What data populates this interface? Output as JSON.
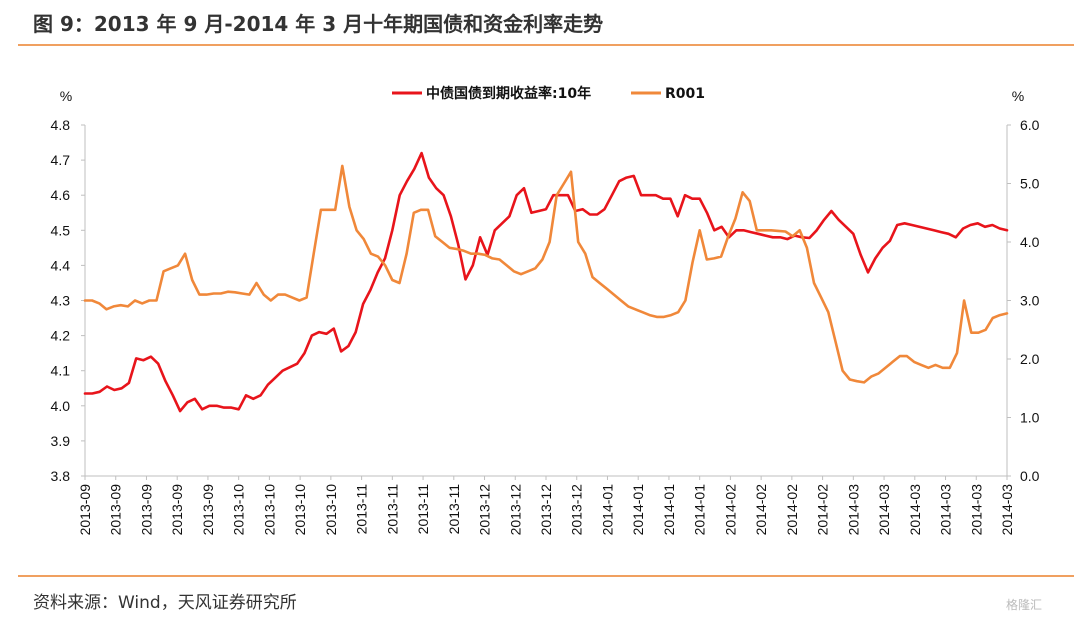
{
  "title": "图 9：2013 年 9 月-2014 年 3 月十年期国债和资金利率走势",
  "source": "资料来源：Wind，天风证券研究所",
  "watermark": "格隆汇",
  "colors": {
    "accent_rule": "#f0a060",
    "bond_line": "#e8141b",
    "r001_line": "#f0883a"
  },
  "chart_data": {
    "type": "line",
    "left_axis": {
      "unit": "%",
      "ylim": [
        3.8,
        4.8
      ],
      "ticks": [
        "3.8",
        "3.9",
        "4.0",
        "4.1",
        "4.2",
        "4.3",
        "4.4",
        "4.5",
        "4.6",
        "4.7",
        "4.8"
      ]
    },
    "right_axis": {
      "unit": "%",
      "ylim": [
        0.0,
        6.0
      ],
      "ticks": [
        "0.0",
        "1.0",
        "2.0",
        "3.0",
        "4.0",
        "5.0",
        "6.0"
      ]
    },
    "x_tick_labels": [
      "2013-09",
      "2013-09",
      "2013-09",
      "2013-09",
      "2013-09",
      "2013-10",
      "2013-10",
      "2013-10",
      "2013-10",
      "2013-11",
      "2013-11",
      "2013-11",
      "2013-11",
      "2013-12",
      "2013-12",
      "2013-12",
      "2013-12",
      "2014-01",
      "2014-01",
      "2014-01",
      "2014-01",
      "2014-02",
      "2014-02",
      "2014-02",
      "2014-02",
      "2014-03",
      "2014-03",
      "2014-03",
      "2014-03",
      "2014-03",
      "2014-03"
    ],
    "legend_position": "top-center",
    "series": [
      {
        "name": "中债国债到期收益率:10年",
        "axis": "left",
        "color": "#e8141b",
        "values": [
          4.035,
          4.035,
          4.04,
          4.055,
          4.045,
          4.05,
          4.065,
          4.135,
          4.13,
          4.14,
          4.12,
          4.07,
          4.03,
          3.985,
          4.01,
          4.02,
          3.99,
          4.0,
          4.0,
          3.995,
          3.995,
          3.99,
          4.03,
          4.02,
          4.03,
          4.06,
          4.08,
          4.1,
          4.11,
          4.12,
          4.15,
          4.2,
          4.21,
          4.205,
          4.22,
          4.155,
          4.17,
          4.21,
          4.29,
          4.33,
          4.38,
          4.42,
          4.5,
          4.6,
          4.64,
          4.675,
          4.72,
          4.65,
          4.62,
          4.6,
          4.54,
          4.46,
          4.36,
          4.4,
          4.48,
          4.43,
          4.5,
          4.52,
          4.54,
          4.6,
          4.62,
          4.55,
          4.555,
          4.56,
          4.6,
          4.6,
          4.6,
          4.555,
          4.56,
          4.545,
          4.545,
          4.56,
          4.6,
          4.64,
          4.65,
          4.655,
          4.6,
          4.6,
          4.6,
          4.59,
          4.59,
          4.54,
          4.6,
          4.59,
          4.59,
          4.55,
          4.5,
          4.51,
          4.48,
          4.5,
          4.5,
          4.495,
          4.49,
          4.485,
          4.48,
          4.48,
          4.475,
          4.485,
          4.48,
          4.478,
          4.5,
          4.53,
          4.555,
          4.53,
          4.51,
          4.49,
          4.43,
          4.38,
          4.42,
          4.45,
          4.47,
          4.515,
          4.52,
          4.515,
          4.51,
          4.505,
          4.5,
          4.495,
          4.49,
          4.48,
          4.505,
          4.515,
          4.52,
          4.51,
          4.515,
          4.505,
          4.5
        ]
      },
      {
        "name": "R001",
        "axis": "right",
        "color": "#f0883a",
        "values": [
          3.0,
          3.0,
          2.95,
          2.85,
          2.9,
          2.92,
          2.9,
          3.0,
          2.95,
          3.0,
          3.0,
          3.5,
          3.55,
          3.6,
          3.8,
          3.35,
          3.1,
          3.1,
          3.12,
          3.12,
          3.15,
          3.14,
          3.12,
          3.1,
          3.3,
          3.1,
          3.0,
          3.1,
          3.1,
          3.05,
          3.0,
          3.05,
          3.8,
          4.55,
          4.55,
          4.55,
          5.3,
          4.6,
          4.2,
          4.05,
          3.8,
          3.75,
          3.6,
          3.35,
          3.3,
          3.8,
          4.5,
          4.55,
          4.55,
          4.1,
          4.0,
          3.9,
          3.88,
          3.85,
          3.8,
          3.8,
          3.78,
          3.72,
          3.7,
          3.6,
          3.5,
          3.45,
          3.5,
          3.55,
          3.7,
          4.0,
          4.8,
          5.0,
          5.2,
          4.0,
          3.8,
          3.4,
          3.3,
          3.2,
          3.1,
          3.0,
          2.9,
          2.85,
          2.8,
          2.75,
          2.72,
          2.72,
          2.75,
          2.8,
          3.0,
          3.65,
          4.2,
          3.7,
          3.72,
          3.75,
          4.1,
          4.4,
          4.85,
          4.7,
          4.2,
          4.2,
          4.2,
          4.19,
          4.18,
          4.1,
          4.2,
          3.9,
          3.3,
          3.05,
          2.8,
          2.3,
          1.8,
          1.65,
          1.62,
          1.6,
          1.7,
          1.75,
          1.85,
          1.95,
          2.05,
          2.05,
          1.95,
          1.9,
          1.85,
          1.9,
          1.85,
          1.85,
          2.1,
          3.0,
          2.45,
          2.45,
          2.5,
          2.7,
          2.75,
          2.78
        ]
      }
    ]
  }
}
